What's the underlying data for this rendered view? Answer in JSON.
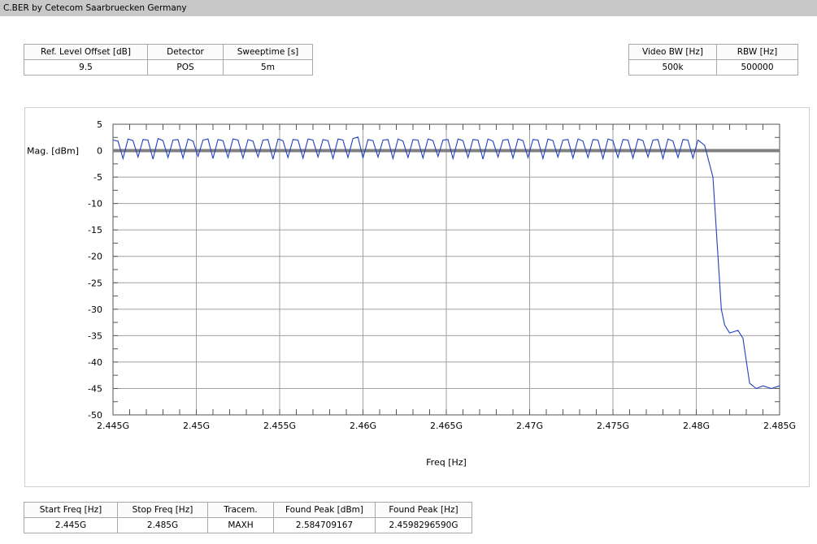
{
  "window": {
    "title": "C.BER by Cetecom Saarbruecken Germany"
  },
  "top_left_params": [
    {
      "label": "Ref. Level Offset [dB]",
      "value": "9.5"
    },
    {
      "label": "Detector",
      "value": "POS"
    },
    {
      "label": "Sweeptime [s]",
      "value": "5m"
    }
  ],
  "top_right_params": [
    {
      "label": "Video BW [Hz]",
      "value": "500k"
    },
    {
      "label": "RBW [Hz]",
      "value": "500000"
    }
  ],
  "bottom_params": [
    {
      "label": "Start Freq [Hz]",
      "value": "2.445G"
    },
    {
      "label": "Stop Freq [Hz]",
      "value": "2.485G"
    },
    {
      "label": "Tracem.",
      "value": "MAXH"
    },
    {
      "label": "Found Peak [dBm]",
      "value": "2.584709167"
    },
    {
      "label": "Found Peak [Hz]",
      "value": "2.4598296590G"
    }
  ],
  "chart_data": {
    "type": "line",
    "xlabel": "Freq [Hz]",
    "ylabel": "Mag. [dBm]",
    "xlim": [
      2.445,
      2.485
    ],
    "ylim": [
      -50,
      5
    ],
    "x_unit": "GHz",
    "x_ticks": [
      2.445,
      2.45,
      2.455,
      2.46,
      2.465,
      2.47,
      2.475,
      2.48,
      2.485
    ],
    "x_tick_labels": [
      "2.445G",
      "2.45G",
      "2.455G",
      "2.46G",
      "2.465G",
      "2.47G",
      "2.475G",
      "2.48G",
      "2.485G"
    ],
    "y_ticks": [
      5,
      0,
      -5,
      -10,
      -15,
      -20,
      -25,
      -30,
      -35,
      -40,
      -45,
      -50
    ],
    "y_tick_labels": [
      "5",
      "0",
      "-5",
      "-10",
      "-15",
      "-20",
      "-25",
      "-30",
      "-35",
      "-40",
      "-45",
      "-50"
    ],
    "grid": true,
    "reference_line": {
      "y": 0,
      "color": "#808080"
    },
    "series": [
      {
        "color": "#2040c0",
        "x": [
          2.445,
          2.4453,
          2.4456,
          2.4459,
          2.4462,
          2.4465,
          2.4468,
          2.4471,
          2.4474,
          2.4477,
          2.448,
          2.4483,
          2.4486,
          2.4489,
          2.4492,
          2.4495,
          2.4498,
          2.4501,
          2.4504,
          2.4507,
          2.451,
          2.4513,
          2.4516,
          2.4519,
          2.4522,
          2.4525,
          2.4528,
          2.4531,
          2.4534,
          2.4537,
          2.454,
          2.4543,
          2.4546,
          2.4549,
          2.4552,
          2.4555,
          2.4558,
          2.4561,
          2.4564,
          2.4567,
          2.457,
          2.4573,
          2.4576,
          2.4579,
          2.4582,
          2.4585,
          2.4588,
          2.4591,
          2.4594,
          2.4597,
          2.46,
          2.4603,
          2.4606,
          2.4609,
          2.4612,
          2.4615,
          2.4618,
          2.4621,
          2.4624,
          2.4627,
          2.463,
          2.4633,
          2.4636,
          2.4639,
          2.4642,
          2.4645,
          2.4648,
          2.4651,
          2.4654,
          2.4657,
          2.466,
          2.4663,
          2.4666,
          2.4669,
          2.4672,
          2.4675,
          2.4678,
          2.4681,
          2.4684,
          2.4687,
          2.469,
          2.4693,
          2.4696,
          2.4699,
          2.4702,
          2.4705,
          2.4708,
          2.4711,
          2.4714,
          2.4717,
          2.472,
          2.4723,
          2.4726,
          2.4729,
          2.4732,
          2.4735,
          2.4738,
          2.4741,
          2.4744,
          2.4747,
          2.475,
          2.4753,
          2.4756,
          2.4759,
          2.4762,
          2.4765,
          2.4768,
          2.4771,
          2.4774,
          2.4777,
          2.478,
          2.4783,
          2.4786,
          2.4789,
          2.4792,
          2.4795,
          2.4798,
          2.4801,
          2.4805,
          2.481,
          2.4813,
          2.4815,
          2.4817,
          2.482,
          2.4825,
          2.4828,
          2.4832,
          2.4836,
          2.484,
          2.4845,
          2.485
        ],
        "y": [
          2.0,
          1.8,
          -1.5,
          2.2,
          1.9,
          -1.2,
          2.1,
          2.0,
          -1.6,
          2.3,
          1.9,
          -1.3,
          2.0,
          2.1,
          -1.4,
          2.2,
          1.8,
          -1.1,
          2.0,
          2.2,
          -1.5,
          2.1,
          1.9,
          -1.3,
          2.2,
          2.0,
          -1.4,
          2.1,
          1.8,
          -1.2,
          2.0,
          2.1,
          -1.6,
          2.2,
          1.9,
          -1.3,
          2.1,
          2.0,
          -1.4,
          2.2,
          2.0,
          -1.2,
          2.1,
          1.9,
          -1.5,
          2.2,
          2.0,
          -1.3,
          2.3,
          2.58,
          -1.4,
          2.1,
          1.9,
          -1.2,
          2.0,
          2.1,
          -1.5,
          2.2,
          1.8,
          -1.3,
          2.1,
          2.0,
          -1.4,
          2.2,
          1.9,
          -1.1,
          2.0,
          2.1,
          -1.5,
          2.2,
          1.9,
          -1.3,
          2.1,
          2.0,
          -1.6,
          2.2,
          1.8,
          -1.2,
          2.0,
          2.1,
          -1.4,
          2.2,
          1.9,
          -1.3,
          2.1,
          2.0,
          -1.5,
          2.2,
          1.9,
          -1.2,
          2.0,
          2.1,
          -1.4,
          2.2,
          1.8,
          -1.3,
          2.1,
          2.0,
          -1.5,
          2.2,
          1.9,
          -1.3,
          2.1,
          2.0,
          -1.4,
          2.2,
          1.9,
          -1.2,
          2.0,
          2.1,
          -1.5,
          2.2,
          1.8,
          -1.3,
          2.1,
          2.0,
          -1.4,
          2.0,
          1.0,
          -5.0,
          -20.0,
          -30.0,
          -33.0,
          -34.5,
          -34.0,
          -35.5,
          -44.0,
          -45.0,
          -44.5,
          -45.0,
          -44.5
        ]
      }
    ]
  }
}
